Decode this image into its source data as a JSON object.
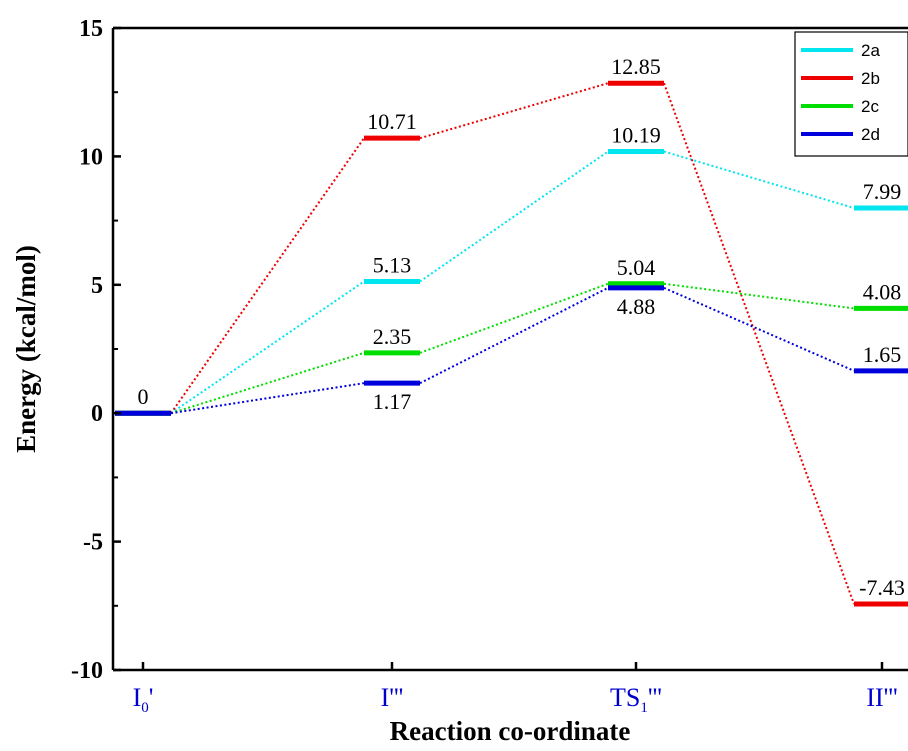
{
  "chart_data": {
    "type": "line",
    "xlabel": "Reaction co-ordinate",
    "ylabel": "Energy (kcal/mol)",
    "ylim": [
      -10,
      15
    ],
    "yticks": [
      "-10",
      "-5",
      "0",
      "5",
      "10",
      "15"
    ],
    "categories": [
      {
        "main": "I",
        "sub": "0",
        "suffix": "'"
      },
      {
        "main": "I'''",
        "sub": "",
        "suffix": ""
      },
      {
        "main": "TS",
        "sub": "1",
        "suffix": "'''"
      },
      {
        "main": "II'''",
        "sub": "",
        "suffix": ""
      }
    ],
    "category_color": "#0000cc",
    "legend_position": "top-right",
    "grid": false,
    "series": [
      {
        "name": "2a",
        "color": "#00e5ee",
        "values": [
          0,
          5.13,
          10.19,
          7.99
        ],
        "labels": [
          "",
          "5.13",
          "10.19",
          "7.99"
        ],
        "label_pos": [
          "",
          "above",
          "above",
          "above"
        ]
      },
      {
        "name": "2b",
        "color": "#ee0000",
        "values": [
          0,
          10.71,
          12.85,
          -7.43
        ],
        "labels": [
          "",
          "10.71",
          "12.85",
          "-7.43"
        ],
        "label_pos": [
          "",
          "above",
          "above",
          "above"
        ]
      },
      {
        "name": "2c",
        "color": "#00dd00",
        "values": [
          0,
          2.35,
          5.04,
          4.08
        ],
        "labels": [
          "",
          "2.35",
          "5.04",
          "4.08"
        ],
        "label_pos": [
          "",
          "above",
          "above",
          "above"
        ]
      },
      {
        "name": "2d",
        "color": "#0000dd",
        "values": [
          0,
          1.17,
          4.88,
          1.65
        ],
        "labels": [
          "0",
          "1.17",
          "4.88",
          "1.65"
        ],
        "label_pos": [
          "above",
          "below",
          "below",
          "above"
        ]
      }
    ]
  }
}
